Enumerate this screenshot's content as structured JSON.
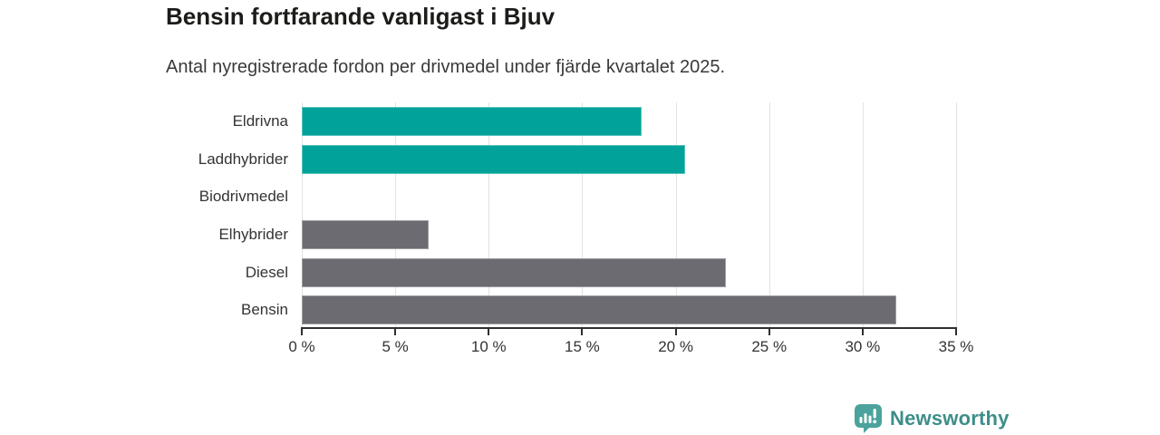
{
  "header": {
    "title": "Bensin fortfarande vanligast i Bjuv",
    "subtitle": "Antal nyregistrerade fordon per drivmedel under fjärde kvartalet 2025."
  },
  "chart_data": {
    "type": "bar",
    "orientation": "horizontal",
    "title": "Bensin fortfarande vanligast i Bjuv",
    "subtitle": "Antal nyregistrerade fordon per drivmedel under fjärde kvartalet 2025.",
    "categories": [
      "Eldrivna",
      "Laddhybrider",
      "Biodrivmedel",
      "Elhybrider",
      "Diesel",
      "Bensin"
    ],
    "values": [
      18.2,
      20.5,
      0,
      6.8,
      22.7,
      31.8
    ],
    "unit": "%",
    "xlim": [
      0,
      35
    ],
    "x_ticks": [
      0,
      5,
      10,
      15,
      20,
      25,
      30,
      35
    ],
    "x_tick_labels": [
      "0 %",
      "5 %",
      "10 %",
      "15 %",
      "20 %",
      "25 %",
      "30 %",
      "35 %"
    ],
    "grid": true,
    "legend": "none",
    "bar_colors": [
      "#00a29a",
      "#00a29a",
      "#00a29a",
      "#6c6b72",
      "#6c6b72",
      "#6c6b72"
    ]
  },
  "colors": {
    "teal_bar": "#00a29a",
    "gray_bar": "#6c6b72",
    "gridline": "#e2e2e2",
    "axis": "#2f2f2f",
    "title_text": "#1c1c1a",
    "subtitle_text": "#3a3a3a",
    "label_text": "#333333",
    "logo_icon_fill": "#4aa39c",
    "logo_text": "#3d8e89"
  },
  "footer": {
    "brand": "Newsworthy",
    "logo_icon": "bar-chart-bubble-icon"
  }
}
